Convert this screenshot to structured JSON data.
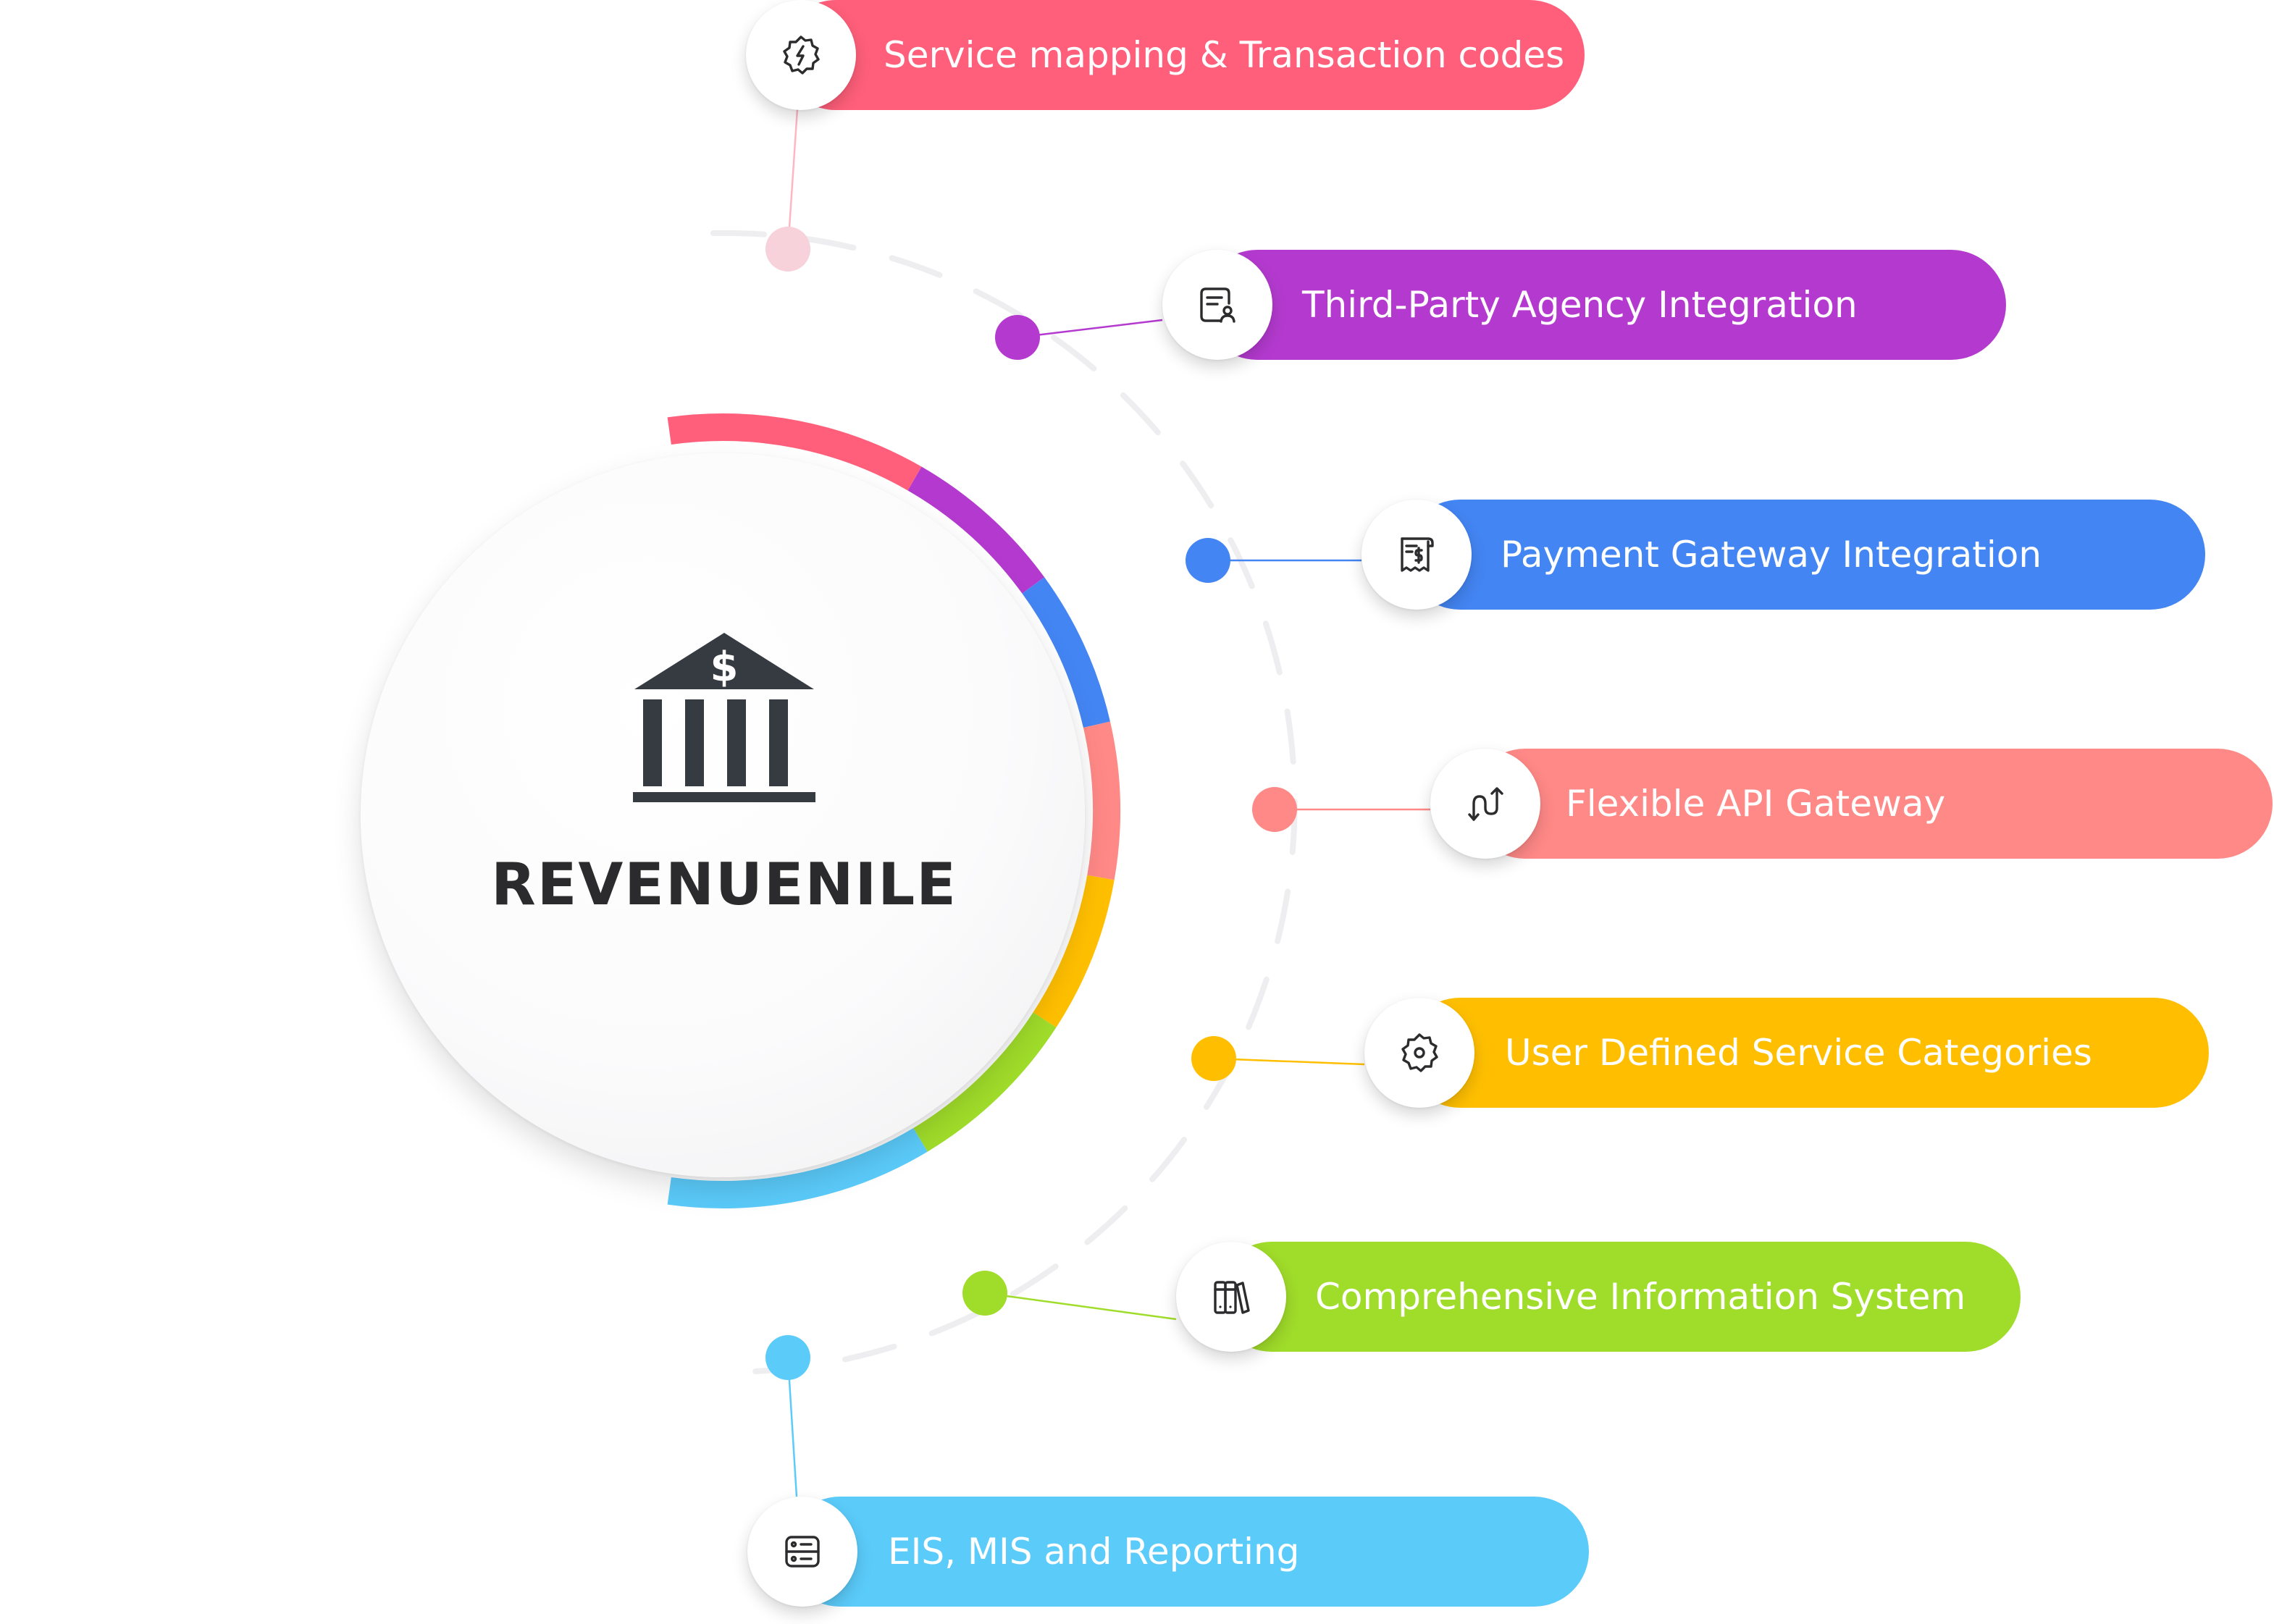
{
  "center": {
    "title": "REVENUENILE",
    "icon": "bank-dollar-icon"
  },
  "items": [
    {
      "label": "Service mapping & Transaction codes",
      "icon": "badge-lightning-icon",
      "color": "#FF5F7A",
      "node_color": "#F7D2DA"
    },
    {
      "label": "Third-Party Agency Integration",
      "icon": "document-user-icon",
      "color": "#B43ACF",
      "node_color": "#B43ACF"
    },
    {
      "label": "Payment Gateway Integration",
      "icon": "receipt-dollar-icon",
      "color": "#4385F3",
      "node_color": "#4385F3"
    },
    {
      "label": "Flexible API Gateway",
      "icon": "route-arrows-icon",
      "color": "#FF8987",
      "node_color": "#FF8987"
    },
    {
      "label": "User Defined Service Categories",
      "icon": "badge-gear-icon",
      "color": "#FFBF00",
      "node_color": "#FFBF00"
    },
    {
      "label": "Comprehensive Information System",
      "icon": "books-icon",
      "color": "#A0DC2A",
      "node_color": "#A0DC2A"
    },
    {
      "label": "EIS, MIS and Reporting",
      "icon": "server-panel-icon",
      "color": "#5BCBFA",
      "node_color": "#5BCBFA"
    }
  ],
  "ring_colors": [
    "#FF5F7A",
    "#B43ACF",
    "#4385F3",
    "#FF8987",
    "#FFBF00",
    "#A0DC2A",
    "#5BCBFA"
  ]
}
